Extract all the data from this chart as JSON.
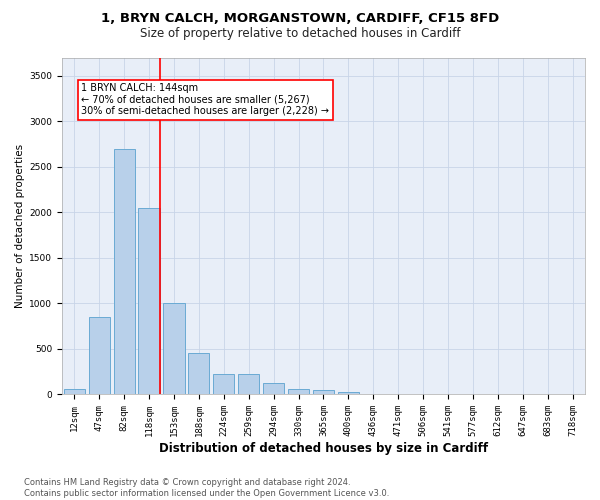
{
  "title1": "1, BRYN CALCH, MORGANSTOWN, CARDIFF, CF15 8FD",
  "title2": "Size of property relative to detached houses in Cardiff",
  "xlabel": "Distribution of detached houses by size in Cardiff",
  "ylabel": "Number of detached properties",
  "footnote": "Contains HM Land Registry data © Crown copyright and database right 2024.\nContains public sector information licensed under the Open Government Licence v3.0.",
  "bar_labels": [
    "12sqm",
    "47sqm",
    "82sqm",
    "118sqm",
    "153sqm",
    "188sqm",
    "224sqm",
    "259sqm",
    "294sqm",
    "330sqm",
    "365sqm",
    "400sqm",
    "436sqm",
    "471sqm",
    "506sqm",
    "541sqm",
    "577sqm",
    "612sqm",
    "647sqm",
    "683sqm",
    "718sqm"
  ],
  "bar_values": [
    55,
    850,
    2700,
    2050,
    1000,
    450,
    220,
    220,
    130,
    60,
    50,
    30,
    10,
    5,
    0,
    0,
    0,
    0,
    0,
    0,
    0
  ],
  "bar_color": "#b8d0ea",
  "bar_edge_color": "#6aaad4",
  "grid_color": "#c8d4e8",
  "background_color": "#e8eef8",
  "annotation_box_text": "1 BRYN CALCH: 144sqm\n← 70% of detached houses are smaller (5,267)\n30% of semi-detached houses are larger (2,228) →",
  "vline_color": "red",
  "vline_x": 3.43,
  "ylim": [
    0,
    3700
  ],
  "yticks": [
    0,
    500,
    1000,
    1500,
    2000,
    2500,
    3000,
    3500
  ],
  "title1_fontsize": 9.5,
  "title2_fontsize": 8.5,
  "xlabel_fontsize": 8.5,
  "ylabel_fontsize": 7.5,
  "tick_fontsize": 6.5,
  "annot_fontsize": 7.0,
  "footnote_fontsize": 6.0
}
